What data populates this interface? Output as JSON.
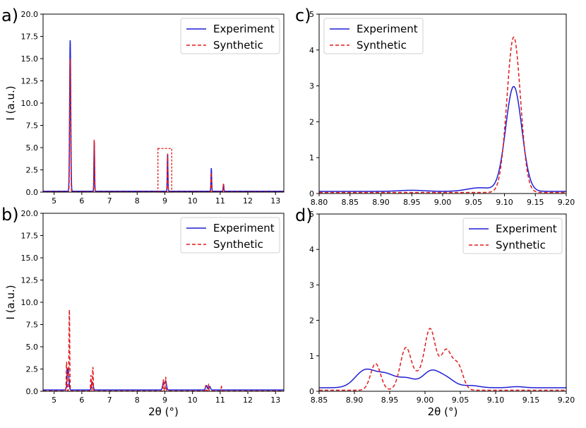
{
  "chart_data": [
    {
      "id": "a",
      "panel_label": "a)",
      "type": "line",
      "xlim": [
        4.6,
        13.3
      ],
      "ylim": [
        0,
        20
      ],
      "xticks": [
        5,
        6,
        7,
        8,
        9,
        10,
        11,
        12,
        13
      ],
      "xtick_labels": [
        "5",
        "6",
        "7",
        "8",
        "9",
        "10",
        "11",
        "12",
        "13"
      ],
      "yticks": [
        0,
        2.5,
        5,
        7.5,
        10,
        12.5,
        15,
        17.5,
        20
      ],
      "ytick_labels": [
        "0.0",
        "2.5",
        "5.0",
        "7.5",
        "10.0",
        "12.5",
        "15.0",
        "17.5",
        "20.0"
      ],
      "ylabel": "I (a.u.)",
      "xlabel": "",
      "legend": [
        "Experiment",
        "Synthetic"
      ],
      "legend_loc": "top-right",
      "zoom_box": {
        "x": [
          8.75,
          9.25
        ],
        "y": [
          0,
          4.9
        ]
      },
      "baseline": {
        "exp": 0.1,
        "syn": 0.03
      },
      "peaks": {
        "exp": [
          [
            5.58,
            17.0,
            0.02
          ],
          [
            6.45,
            5.6,
            0.012
          ],
          [
            9.1,
            4.2,
            0.012
          ],
          [
            10.68,
            2.6,
            0.012
          ],
          [
            11.12,
            0.8,
            0.012
          ]
        ],
        "syn": [
          [
            5.58,
            15.0,
            0.016
          ],
          [
            6.45,
            5.9,
            0.01
          ],
          [
            9.1,
            4.4,
            0.01
          ],
          [
            10.68,
            2.2,
            0.01
          ],
          [
            11.12,
            0.9,
            0.01
          ]
        ]
      }
    },
    {
      "id": "b",
      "panel_label": "b)",
      "type": "line",
      "xlim": [
        4.6,
        13.3
      ],
      "ylim": [
        0,
        20
      ],
      "xticks": [
        5,
        6,
        7,
        8,
        9,
        10,
        11,
        12,
        13
      ],
      "xtick_labels": [
        "5",
        "6",
        "7",
        "8",
        "9",
        "10",
        "11",
        "12",
        "13"
      ],
      "yticks": [
        0,
        2.5,
        5,
        7.5,
        10,
        12.5,
        15,
        17.5,
        20
      ],
      "ytick_labels": [
        "0.0",
        "2.5",
        "5.0",
        "7.5",
        "10.0",
        "12.5",
        "15.0",
        "17.5",
        "20.0"
      ],
      "ylabel": "I (a.u.)",
      "xlabel": "2θ (°)",
      "legend": [
        "Experiment",
        "Synthetic"
      ],
      "legend_loc": "top-right",
      "baseline": {
        "exp": 0.15,
        "syn": 0.03
      },
      "peaks": {
        "exp": [
          [
            5.5,
            2.4,
            0.03
          ],
          [
            6.38,
            0.9,
            0.03
          ],
          [
            8.95,
            0.8,
            0.03
          ],
          [
            9.03,
            1.0,
            0.03
          ],
          [
            10.5,
            0.5,
            0.03
          ],
          [
            10.62,
            0.4,
            0.03
          ]
        ],
        "syn": [
          [
            5.45,
            3.3,
            0.012
          ],
          [
            5.55,
            9.2,
            0.013
          ],
          [
            6.33,
            1.8,
            0.012
          ],
          [
            6.4,
            2.7,
            0.012
          ],
          [
            8.95,
            1.3,
            0.012
          ],
          [
            9.03,
            1.6,
            0.012
          ],
          [
            10.48,
            0.6,
            0.012
          ],
          [
            10.58,
            0.7,
            0.012
          ],
          [
            11.05,
            0.5,
            0.012
          ]
        ]
      }
    },
    {
      "id": "c",
      "panel_label": "c)",
      "type": "line",
      "xlim": [
        8.8,
        9.2
      ],
      "ylim": [
        0,
        5
      ],
      "xticks": [
        8.8,
        8.85,
        8.9,
        8.95,
        9.0,
        9.05,
        9.1,
        9.15,
        9.2
      ],
      "xtick_labels": [
        "8.80",
        "8.85",
        "8.90",
        "8.95",
        "9.00",
        "9.05",
        "9.10",
        "9.15",
        "9.20"
      ],
      "yticks": [
        0,
        1,
        2,
        3,
        4,
        5
      ],
      "ytick_labels": [
        "0",
        "1",
        "2",
        "3",
        "4",
        "5"
      ],
      "ylabel": "",
      "xlabel": "",
      "legend": [
        "Experiment",
        "Synthetic"
      ],
      "legend_loc": "top-left",
      "baseline": {
        "exp": 0.06,
        "syn": 0.03
      },
      "peaks": {
        "exp": [
          [
            9.115,
            2.92,
            0.013
          ],
          [
            9.06,
            0.1,
            0.02
          ],
          [
            8.95,
            0.03,
            0.02
          ]
        ],
        "syn": [
          [
            9.115,
            4.33,
            0.011
          ]
        ]
      }
    },
    {
      "id": "d",
      "panel_label": "d)",
      "type": "line",
      "xlim": [
        8.85,
        9.2
      ],
      "ylim": [
        0,
        5
      ],
      "xticks": [
        8.85,
        8.9,
        8.95,
        9.0,
        9.05,
        9.1,
        9.15,
        9.2
      ],
      "xtick_labels": [
        "8.85",
        "8.90",
        "8.95",
        "9.00",
        "9.05",
        "9.10",
        "9.15",
        "9.20"
      ],
      "yticks": [
        0,
        1,
        2,
        3,
        4,
        5
      ],
      "ytick_labels": [
        "0",
        "1",
        "2",
        "3",
        "4",
        "5"
      ],
      "ylabel": "",
      "xlabel": "2θ (°)",
      "legend": [
        "Experiment",
        "Synthetic"
      ],
      "legend_loc": "top-right",
      "baseline": {
        "exp": 0.1,
        "syn": 0.03
      },
      "peaks": {
        "exp": [
          [
            8.915,
            0.48,
            0.014
          ],
          [
            8.945,
            0.36,
            0.014
          ],
          [
            8.975,
            0.24,
            0.012
          ],
          [
            9.008,
            0.44,
            0.012
          ],
          [
            9.03,
            0.25,
            0.012
          ],
          [
            9.065,
            0.06,
            0.012
          ],
          [
            9.13,
            0.03,
            0.01
          ]
        ],
        "syn": [
          [
            8.93,
            0.75,
            0.007
          ],
          [
            8.973,
            1.2,
            0.008
          ],
          [
            9.007,
            1.72,
            0.008
          ],
          [
            9.03,
            1.1,
            0.008
          ],
          [
            9.047,
            0.65,
            0.007
          ],
          [
            8.99,
            0.25,
            0.006
          ]
        ]
      }
    }
  ]
}
